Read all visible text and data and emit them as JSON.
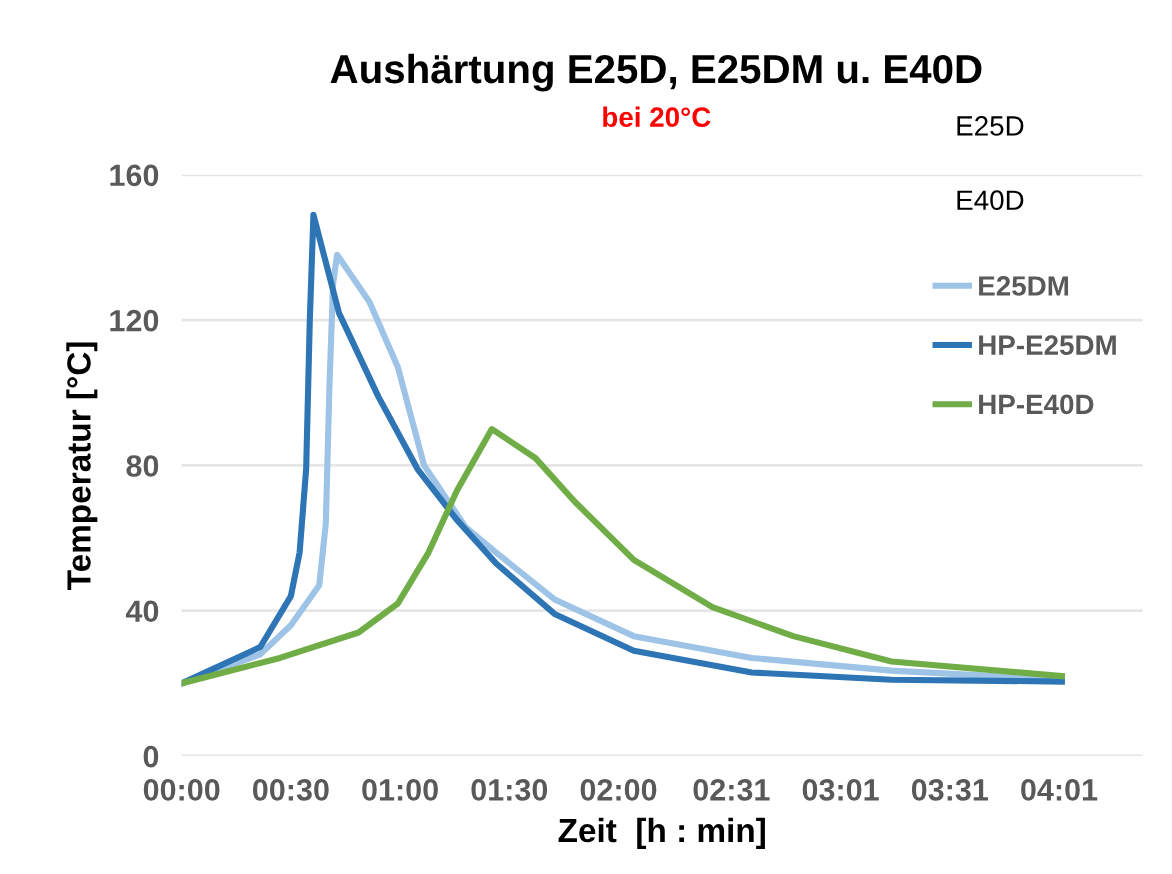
{
  "chart_data": {
    "type": "line",
    "title": "Aushärtung E25D, E25DM u. E40D",
    "subtitle": "bei 20°C",
    "xlabel": "Zeit  [h : min]",
    "ylabel": "Temperatur [°C]",
    "annotations": [
      "E25D",
      "E40D"
    ],
    "series": [
      {
        "name": "E25DM",
        "color": "#9dc3e6",
        "x": [
          0,
          21.6,
          30,
          37.8,
          39.6,
          40.6,
          41.6,
          42.7,
          51.6,
          59.4,
          66.6,
          78,
          86.4,
          102.6,
          124.2,
          156.6,
          195,
          241.8
        ],
        "values": [
          20,
          28,
          36,
          47,
          64,
          102,
          130,
          138,
          125,
          107,
          80,
          63,
          56,
          43,
          33,
          27,
          23.5,
          21
        ]
      },
      {
        "name": "HP-E25DM",
        "color": "#2e75b6",
        "x": [
          0,
          21.6,
          30,
          32.4,
          34.2,
          35.2,
          36.2,
          43.2,
          54,
          64.8,
          75.6,
          86.4,
          102.6,
          124.2,
          156.6,
          195,
          241.8
        ],
        "values": [
          20,
          30,
          44,
          56,
          79,
          120,
          149,
          122,
          99,
          79,
          65,
          53,
          39,
          29,
          23,
          21,
          20.5
        ]
      },
      {
        "name": "HP-E40D",
        "color": "#70ad47",
        "x": [
          0,
          27,
          48.6,
          59.4,
          67.8,
          75.6,
          85.2,
          97.2,
          108,
          124.2,
          145.8,
          168,
          195,
          241.8
        ],
        "values": [
          20,
          27,
          34,
          42,
          56,
          73,
          90,
          82,
          70,
          54,
          41,
          33,
          26,
          22
        ]
      }
    ],
    "xlim": [
      0,
      264
    ],
    "ylim": [
      0,
      160
    ],
    "xticks": [
      {
        "value": 0,
        "label": "00:00"
      },
      {
        "value": 30,
        "label": "00:30"
      },
      {
        "value": 60,
        "label": "01:00"
      },
      {
        "value": 90,
        "label": "01:30"
      },
      {
        "value": 120,
        "label": "02:00"
      },
      {
        "value": 151,
        "label": "02:31"
      },
      {
        "value": 181,
        "label": "03:01"
      },
      {
        "value": 211,
        "label": "03:31"
      },
      {
        "value": 241,
        "label": "04:01"
      }
    ],
    "yticks": [
      0,
      40,
      80,
      120,
      160
    ],
    "grid": "y",
    "legend": "top right",
    "marker": "none",
    "line_style": "solid"
  }
}
